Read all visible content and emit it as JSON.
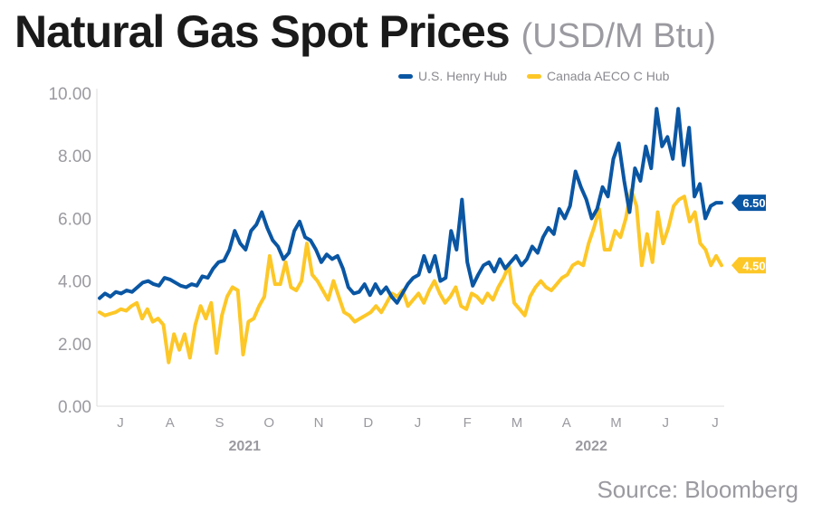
{
  "chart_data": {
    "type": "line",
    "title": "Natural Gas Spot Prices",
    "unit": "(USD/M Btu)",
    "xlabel": "",
    "ylabel": "",
    "ylim": [
      0,
      10
    ],
    "y_ticks": [
      "0.00",
      "2.00",
      "4.00",
      "6.00",
      "8.00",
      "10.00"
    ],
    "x_ticks": [
      "J",
      "A",
      "S",
      "O",
      "N",
      "D",
      "J",
      "F",
      "M",
      "A",
      "M",
      "J",
      "J"
    ],
    "x_years": [
      {
        "label": "2021",
        "under_index": 3
      },
      {
        "label": "2022",
        "under_index": 9.5
      }
    ],
    "legend": {
      "placement": "top-right"
    },
    "grid": false,
    "series": [
      {
        "name": "U.S. Henry Hub",
        "color": "#0a56a3",
        "end_label": "6.50",
        "values": [
          3.45,
          3.6,
          3.5,
          3.65,
          3.6,
          3.7,
          3.65,
          3.8,
          3.95,
          4.0,
          3.9,
          3.85,
          4.1,
          4.05,
          3.95,
          3.85,
          3.8,
          3.9,
          3.85,
          4.15,
          4.1,
          4.4,
          4.6,
          4.65,
          5.0,
          5.6,
          5.2,
          5.0,
          5.6,
          5.8,
          6.2,
          5.7,
          5.3,
          5.1,
          4.7,
          4.9,
          5.6,
          5.9,
          5.4,
          5.3,
          5.0,
          4.6,
          4.85,
          4.7,
          4.8,
          4.4,
          3.8,
          3.6,
          3.65,
          3.9,
          3.55,
          3.9,
          3.6,
          3.8,
          3.5,
          3.3,
          3.6,
          3.9,
          4.1,
          4.2,
          4.8,
          4.3,
          4.8,
          4.0,
          4.1,
          5.6,
          5.0,
          6.6,
          4.6,
          3.85,
          4.2,
          4.5,
          4.6,
          4.3,
          4.7,
          4.4,
          4.6,
          4.8,
          4.5,
          4.7,
          5.1,
          4.9,
          5.4,
          5.7,
          5.5,
          6.3,
          6.0,
          6.4,
          7.5,
          7.0,
          6.6,
          6.0,
          6.3,
          7.0,
          6.7,
          7.9,
          8.4,
          7.2,
          6.2,
          7.6,
          7.2,
          8.3,
          7.6,
          9.5,
          8.3,
          8.6,
          7.9,
          9.5,
          7.7,
          8.9,
          6.7,
          7.1,
          6.0,
          6.4,
          6.5,
          6.5
        ]
      },
      {
        "name": "Canada AECO C Hub",
        "color": "#fdc727",
        "end_label": "4.50",
        "values": [
          3.0,
          2.9,
          2.95,
          3.0,
          3.1,
          3.05,
          3.2,
          3.3,
          2.8,
          3.1,
          2.7,
          2.8,
          2.6,
          1.4,
          2.3,
          1.8,
          2.3,
          1.55,
          2.6,
          3.2,
          2.8,
          3.3,
          1.7,
          2.9,
          3.5,
          3.8,
          3.7,
          1.65,
          2.7,
          2.8,
          3.2,
          3.5,
          4.8,
          3.9,
          3.9,
          4.6,
          3.8,
          3.7,
          4.0,
          5.2,
          4.2,
          4.0,
          3.7,
          3.4,
          4.0,
          3.5,
          3.0,
          2.9,
          2.7,
          2.8,
          2.9,
          3.0,
          3.2,
          3.0,
          3.3,
          3.6,
          3.5,
          3.7,
          3.2,
          3.4,
          3.6,
          3.3,
          3.7,
          4.0,
          3.6,
          3.3,
          3.5,
          3.8,
          3.2,
          3.1,
          3.6,
          3.5,
          3.3,
          3.6,
          3.4,
          3.8,
          4.1,
          4.5,
          3.3,
          3.1,
          2.9,
          3.5,
          3.8,
          4.0,
          3.8,
          3.7,
          3.9,
          4.1,
          4.2,
          4.5,
          4.6,
          4.5,
          5.2,
          5.7,
          6.3,
          5.0,
          5.0,
          5.6,
          5.4,
          6.0,
          6.9,
          6.4,
          4.5,
          5.5,
          4.6,
          6.2,
          5.2,
          5.7,
          6.4,
          6.6,
          6.7,
          5.9,
          6.2,
          5.2,
          5.0,
          4.5,
          4.8,
          4.5
        ]
      }
    ]
  },
  "source": "Source: Bloomberg"
}
